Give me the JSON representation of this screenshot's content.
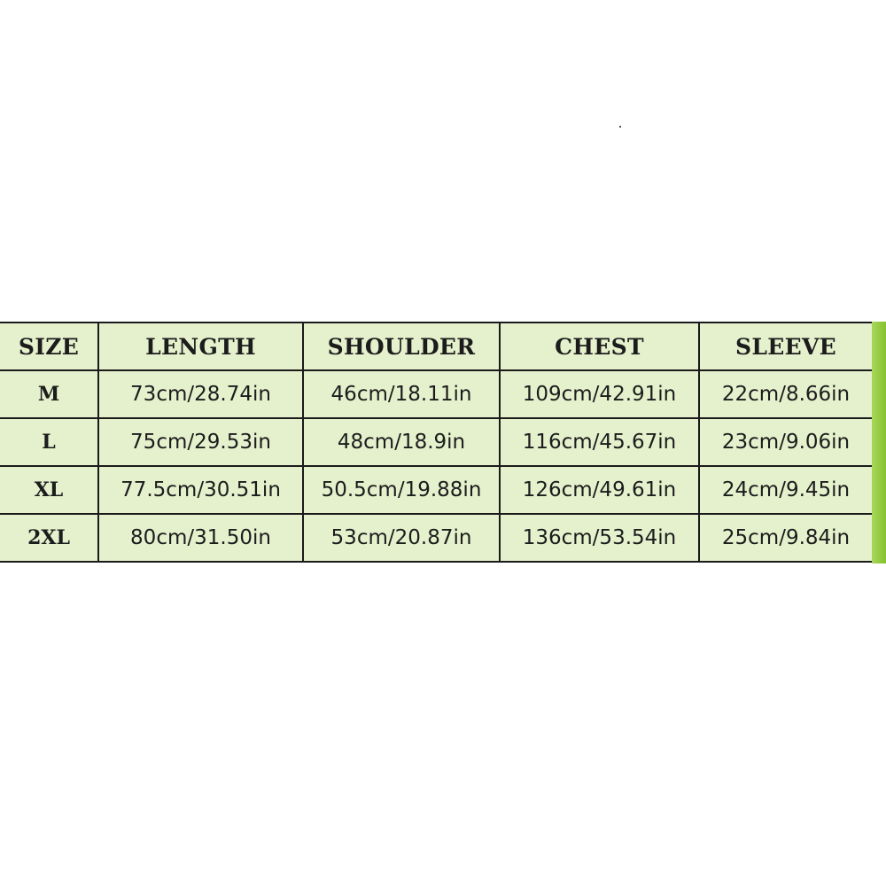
{
  "chart_data": {
    "type": "table",
    "columns": [
      "SIZE",
      "LENGTH",
      "SHOULDER",
      "CHEST",
      "SLEEVE"
    ],
    "rows": [
      [
        "M",
        "73cm/28.74in",
        "46cm/18.11in",
        "109cm/42.91in",
        "22cm/8.66in"
      ],
      [
        "L",
        "75cm/29.53in",
        "48cm/18.9in",
        "116cm/45.67in",
        "23cm/9.06in"
      ],
      [
        "XL",
        "77.5cm/30.51in",
        "50.5cm/19.88in",
        "126cm/49.61in",
        "24cm/9.45in"
      ],
      [
        "2XL",
        "80cm/31.50in",
        "53cm/20.87in",
        "136cm/53.54in",
        "25cm/9.84in"
      ]
    ]
  },
  "colors": {
    "cell_background": "#e5f1cd",
    "accent_strip": "#8fcc3a",
    "border": "#1a1a1a"
  }
}
